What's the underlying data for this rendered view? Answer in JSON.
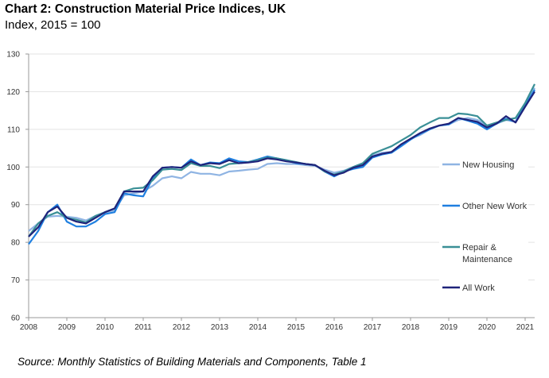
{
  "chart_data": {
    "type": "line",
    "title": "Chart 2: Construction Material Price Indices, UK",
    "subtitle": "Index, 2015 = 100",
    "source": "Source: Monthly Statistics of Building Materials and Components, Table 1",
    "xlabel": "",
    "ylabel": "",
    "ylim": [
      60,
      130
    ],
    "xlim": [
      2008,
      2021.25
    ],
    "yticks": [
      "60",
      "70",
      "80",
      "90",
      "100",
      "110",
      "120",
      "130"
    ],
    "xticks": [
      "2008",
      "2009",
      "2010",
      "2011",
      "2012",
      "2013",
      "2014",
      "2015",
      "2016",
      "2017",
      "2018",
      "2019",
      "2020",
      "2021"
    ],
    "grid": true,
    "legend_position": "right",
    "x_start": 2008,
    "x_step": 0.25,
    "series": [
      {
        "name": "New Housing",
        "color": "#8fb4e3",
        "values": [
          83,
          85,
          86.8,
          87,
          86.8,
          86.5,
          85.8,
          87,
          88,
          88.5,
          92.5,
          93,
          93.5,
          95,
          97,
          97.5,
          97,
          98.7,
          98.2,
          98.2,
          97.8,
          98.8,
          99,
          99.3,
          99.5,
          100.8,
          101,
          100.8,
          100.8,
          100.5,
          100.3,
          99.3,
          98.5,
          99,
          100,
          101,
          103,
          103.8,
          104,
          105.5,
          107.5,
          108.5,
          110,
          111,
          111.3,
          112.5,
          113,
          112.5,
          111,
          111.5,
          112.5,
          112,
          116.5,
          121
        ]
      },
      {
        "name": "Other New Work",
        "color": "#1e7fe0",
        "values": [
          79.5,
          83,
          88,
          90,
          85.5,
          84.2,
          84.2,
          85.5,
          87.5,
          88,
          93,
          92.5,
          92.2,
          97,
          99.8,
          100,
          99.8,
          102,
          100.5,
          101.2,
          101,
          102.3,
          101.5,
          101.3,
          102,
          102.8,
          102.3,
          101.8,
          101,
          100.8,
          100.5,
          98.8,
          97.5,
          98.8,
          99.5,
          100,
          102.5,
          103.3,
          103.8,
          105.5,
          107.3,
          108.8,
          110,
          111,
          111.3,
          113,
          112.3,
          111.5,
          110,
          111.5,
          112.8,
          112,
          116.3,
          120.5
        ]
      },
      {
        "name": "Repair & Maintenance",
        "color": "#3a8f96",
        "values": [
          81.5,
          85,
          87,
          88,
          86.5,
          86,
          85.3,
          87,
          88,
          89,
          93.5,
          94.3,
          94.5,
          96.5,
          99.3,
          99.5,
          99.2,
          101,
          100.3,
          100.3,
          99.7,
          100.8,
          101,
          101.3,
          101.8,
          102.5,
          102.3,
          101.8,
          101.3,
          100.8,
          100.5,
          98.8,
          98,
          98.8,
          100,
          101,
          103.5,
          104.5,
          105.5,
          107,
          108.5,
          110.5,
          111.8,
          113,
          113,
          114.2,
          114,
          113.5,
          111,
          111.8,
          112.5,
          113,
          117,
          122
        ]
      },
      {
        "name": "All Work",
        "color": "#1f237a",
        "values": [
          81.5,
          84,
          88,
          89.5,
          86.5,
          85.5,
          85,
          86.5,
          88,
          89,
          93.5,
          93.5,
          93.5,
          97.5,
          99.8,
          100,
          99.8,
          101.5,
          100.5,
          101,
          100.8,
          101.8,
          101,
          101.2,
          101.5,
          102.3,
          102,
          101.5,
          101.2,
          100.8,
          100.5,
          99,
          97.8,
          98.5,
          99.8,
          100.5,
          102.8,
          103.5,
          104,
          106,
          107.5,
          109,
          110.2,
          111,
          111.5,
          113,
          112.5,
          112,
          110.5,
          111.5,
          113.5,
          111.8,
          116,
          120
        ]
      }
    ],
    "legend_labels": [
      "New Housing",
      "Other New Work",
      "Repair &",
      "Maintenance",
      "All Work"
    ]
  }
}
